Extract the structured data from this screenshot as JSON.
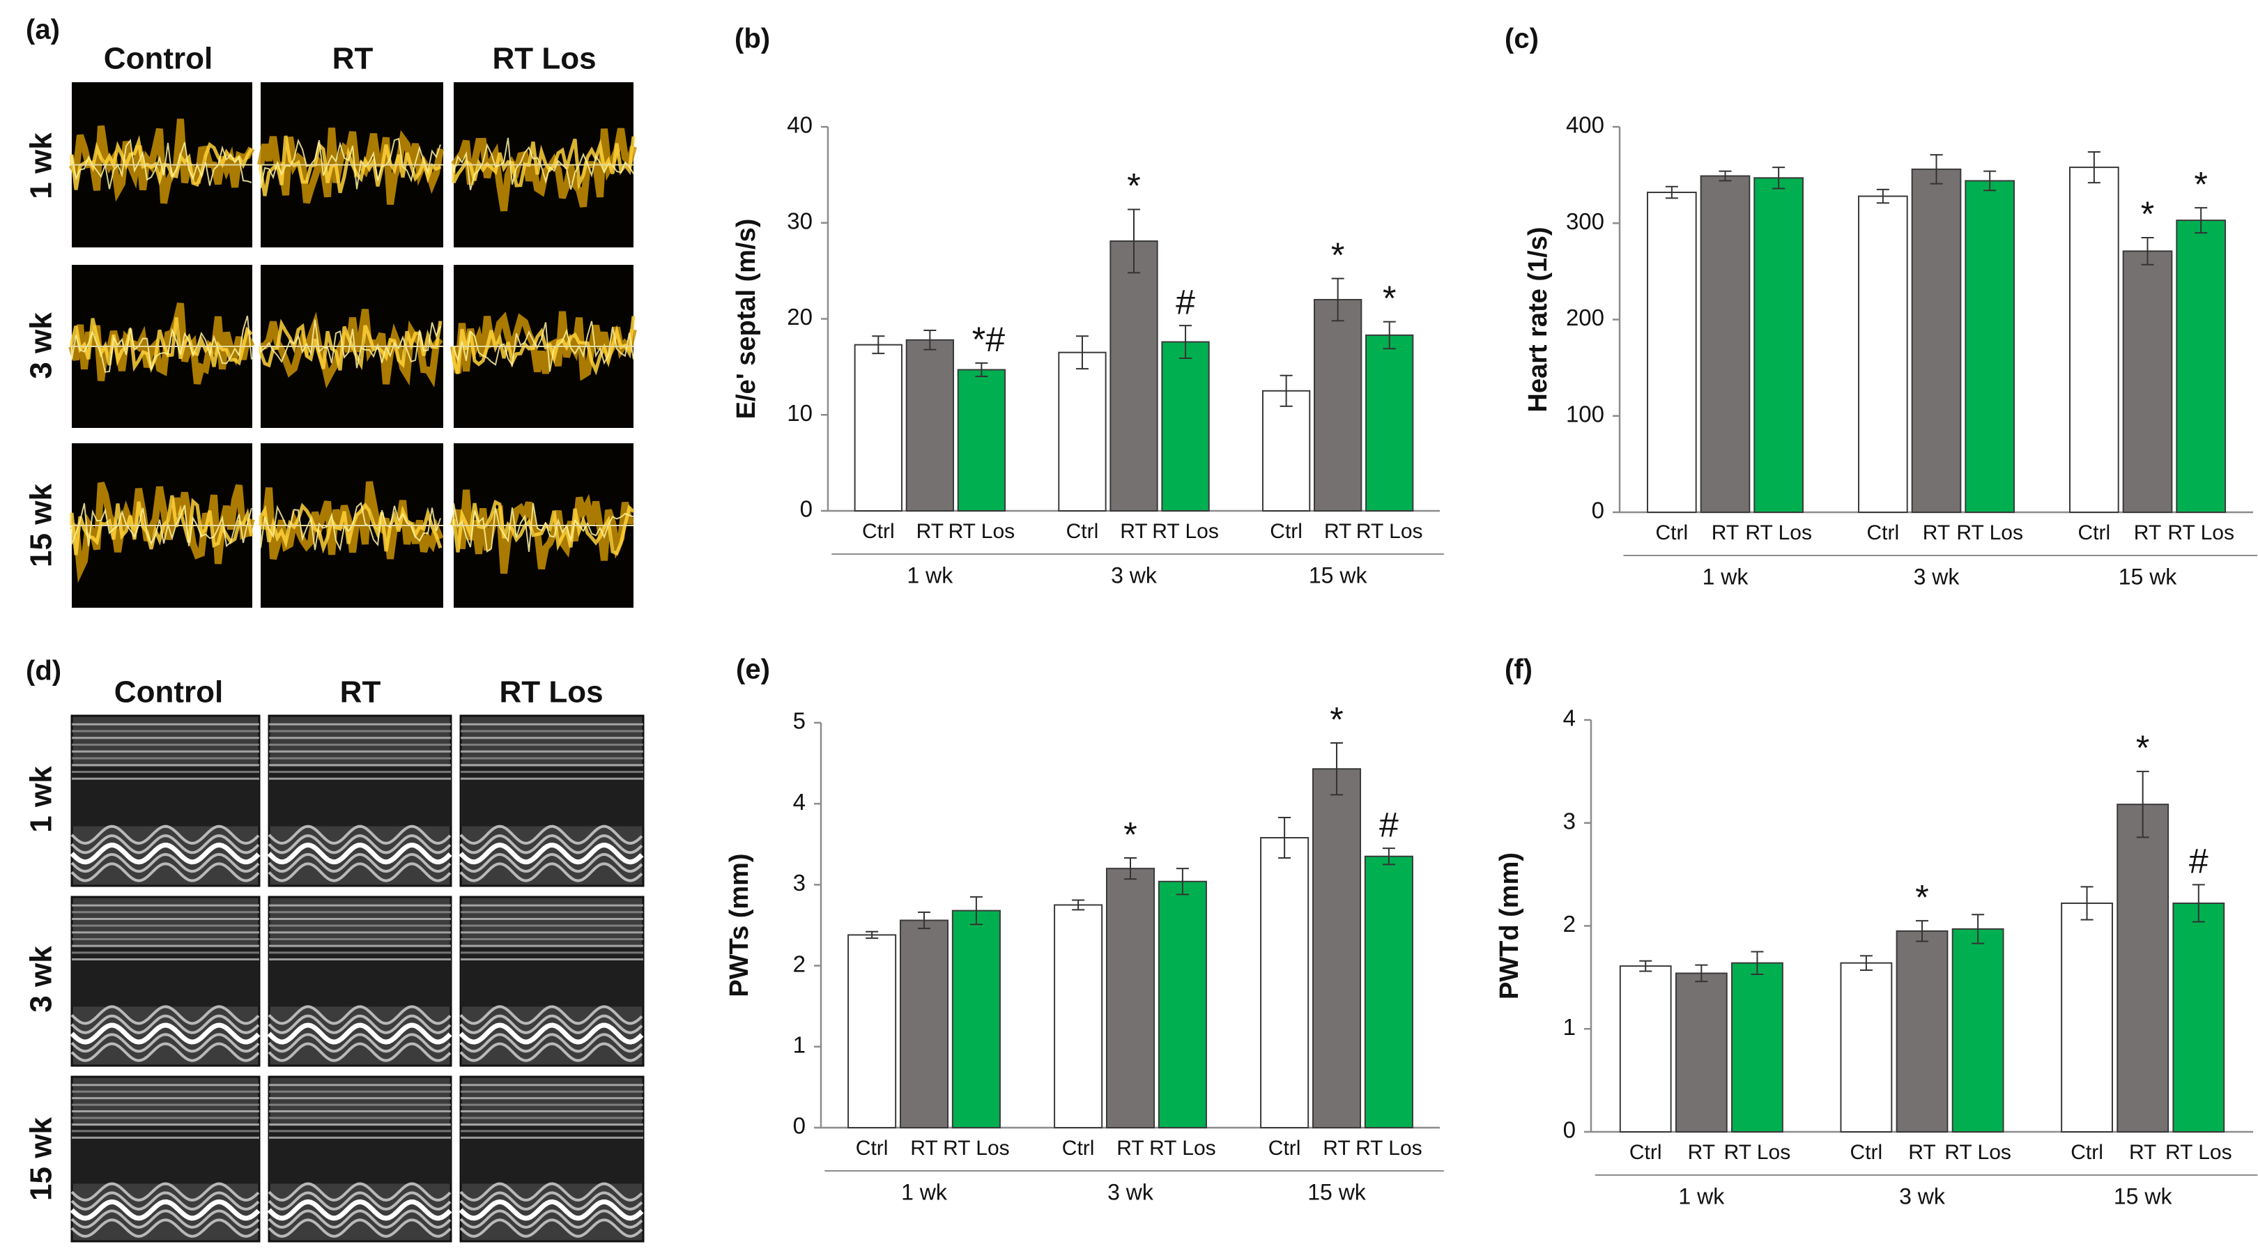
{
  "image_panels": [
    {
      "label": "(a)",
      "columns": [
        "Control",
        "RT",
        "RT Los"
      ],
      "rows": [
        "1 wk",
        "3 wk",
        "15 wk"
      ]
    },
    {
      "label": "(d)",
      "columns": [
        "Control",
        "RT",
        "RT Los"
      ],
      "rows": [
        "1 wk",
        "3 wk",
        "15 wk"
      ]
    }
  ],
  "chart_data": [
    {
      "type": "bar",
      "panel_label": "(b)",
      "y_label": "E/e' septal (m/s)",
      "categories": [
        "1 wk",
        "3 wk",
        "15 wk"
      ],
      "series": [
        {
          "name": "Ctrl",
          "color": "#ffffff",
          "values": [
            17.3,
            16.5,
            12.5
          ],
          "errors": [
            0.9,
            1.7,
            1.6
          ],
          "annotations": [
            null,
            null,
            null
          ]
        },
        {
          "name": "RT",
          "color": "#767171",
          "values": [
            17.8,
            28.1,
            22.0
          ],
          "errors": [
            1.0,
            3.3,
            2.2
          ],
          "annotations": [
            null,
            "*",
            "*"
          ]
        },
        {
          "name": "RT Los",
          "color": "#00b050",
          "values": [
            14.7,
            17.6,
            18.3
          ],
          "errors": [
            0.7,
            1.7,
            1.4
          ],
          "annotations": [
            "*#",
            "#",
            "*"
          ]
        }
      ],
      "ylim": [
        0,
        40
      ],
      "yticks": [
        0,
        10,
        20,
        30,
        40
      ]
    },
    {
      "type": "bar",
      "panel_label": "(c)",
      "y_label": "Heart rate (1/s)",
      "categories": [
        "1 wk",
        "3 wk",
        "15 wk"
      ],
      "series": [
        {
          "name": "Ctrl",
          "color": "#ffffff",
          "values": [
            332,
            328,
            358
          ],
          "errors": [
            6,
            7,
            16
          ],
          "annotations": [
            null,
            null,
            null
          ]
        },
        {
          "name": "RT",
          "color": "#767171",
          "values": [
            349,
            356,
            271
          ],
          "errors": [
            5,
            15,
            14
          ],
          "annotations": [
            null,
            null,
            "*"
          ]
        },
        {
          "name": "RT Los",
          "color": "#00b050",
          "values": [
            347,
            344,
            303
          ],
          "errors": [
            11,
            10,
            13
          ],
          "annotations": [
            null,
            null,
            "*"
          ]
        }
      ],
      "ylim": [
        0,
        400
      ],
      "yticks": [
        0,
        100,
        200,
        300,
        400
      ]
    },
    {
      "type": "bar",
      "panel_label": "(e)",
      "y_label": "PWTs (mm)",
      "categories": [
        "1 wk",
        "3 wk",
        "15 wk"
      ],
      "series": [
        {
          "name": "Ctrl",
          "color": "#ffffff",
          "values": [
            2.38,
            2.75,
            3.58
          ],
          "errors": [
            0.04,
            0.06,
            0.25
          ],
          "annotations": [
            null,
            null,
            null
          ]
        },
        {
          "name": "RT",
          "color": "#767171",
          "values": [
            2.56,
            3.2,
            4.43
          ],
          "errors": [
            0.1,
            0.13,
            0.32
          ],
          "annotations": [
            null,
            "*",
            "*"
          ]
        },
        {
          "name": "RT Los",
          "color": "#00b050",
          "values": [
            2.68,
            3.04,
            3.35
          ],
          "errors": [
            0.17,
            0.16,
            0.1
          ],
          "annotations": [
            null,
            null,
            "#"
          ]
        }
      ],
      "ylim": [
        0,
        5
      ],
      "yticks": [
        0,
        1,
        2,
        3,
        4,
        5
      ]
    },
    {
      "type": "bar",
      "panel_label": "(f)",
      "y_label": "PWTd (mm)",
      "categories": [
        "1 wk",
        "3 wk",
        "15 wk"
      ],
      "series": [
        {
          "name": "Ctrl",
          "color": "#ffffff",
          "values": [
            1.61,
            1.64,
            2.22
          ],
          "errors": [
            0.05,
            0.07,
            0.16
          ],
          "annotations": [
            null,
            null,
            null
          ]
        },
        {
          "name": "RT",
          "color": "#767171",
          "values": [
            1.54,
            1.95,
            3.18
          ],
          "errors": [
            0.08,
            0.1,
            0.32
          ],
          "annotations": [
            null,
            "*",
            "*"
          ]
        },
        {
          "name": "RT Los",
          "color": "#00b050",
          "values": [
            1.64,
            1.97,
            2.22
          ],
          "errors": [
            0.11,
            0.14,
            0.18
          ],
          "annotations": [
            null,
            null,
            "#"
          ]
        }
      ],
      "ylim": [
        0,
        4
      ],
      "yticks": [
        0,
        1,
        2,
        3,
        4
      ]
    }
  ]
}
